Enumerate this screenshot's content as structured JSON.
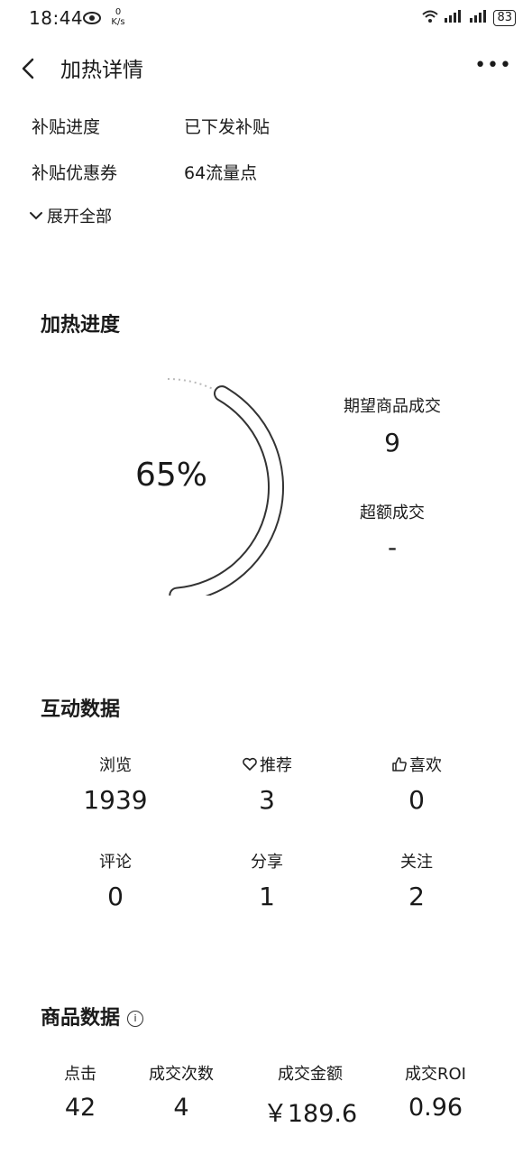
{
  "status_bar": {
    "time": "18:44",
    "speed": "0 K/s",
    "battery": "83"
  },
  "nav": {
    "title": "加热详情",
    "more": "•••"
  },
  "info": [
    {
      "label": "补贴进度",
      "value": "已下发补贴"
    },
    {
      "label": "补贴优惠券",
      "value": "64流量点"
    }
  ],
  "expand_label": "展开全部",
  "heat_progress": {
    "title": "加热进度",
    "percent_text": "65%",
    "expected_label": "期望商品成交",
    "expected_value": "9",
    "excess_label": "超额成交",
    "excess_value": "-"
  },
  "chart_data": {
    "type": "gauge",
    "value": 65,
    "max": 100,
    "label": "65%"
  },
  "interaction": {
    "title": "互动数据",
    "items": [
      {
        "label": "浏览",
        "value": "1939"
      },
      {
        "label": "推荐",
        "value": "3"
      },
      {
        "label": "喜欢",
        "value": "0"
      },
      {
        "label": "评论",
        "value": "0"
      },
      {
        "label": "分享",
        "value": "1"
      },
      {
        "label": "关注",
        "value": "2"
      }
    ]
  },
  "product": {
    "title": "商品数据",
    "items": [
      {
        "label": "点击",
        "value": "42"
      },
      {
        "label": "成交次数",
        "value": "4"
      },
      {
        "label": "成交金额",
        "value": "￥189.6"
      },
      {
        "label": "成交ROI",
        "value": "0.96"
      }
    ]
  }
}
